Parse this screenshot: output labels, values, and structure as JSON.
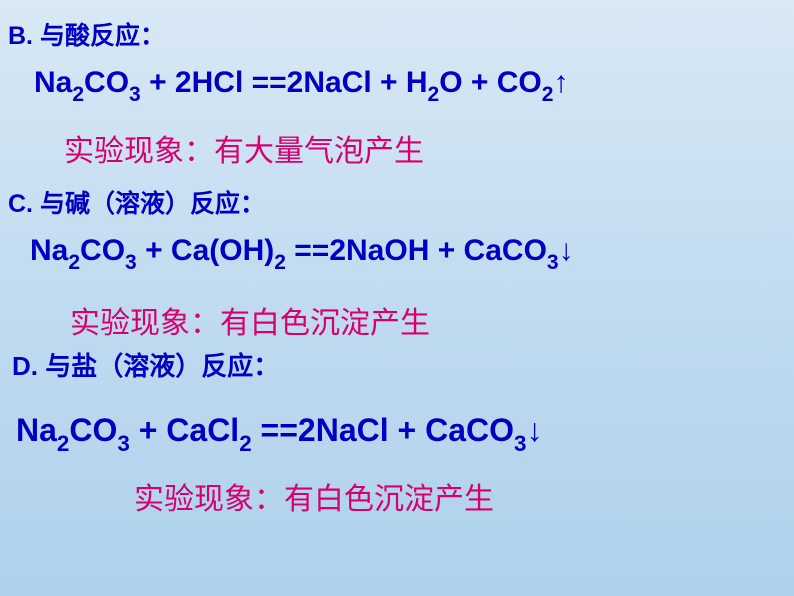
{
  "sections": {
    "B": {
      "label": "B.",
      "heading": "与酸反应：",
      "equation_html": "Na<span class='sub'>2</span>CO<span class='sub'>3</span> + 2HCl ==2NaCl + H<span class='sub'>2</span>O + CO<span class='sub'>2</span>↑",
      "observation": "实验现象：有大量气泡产生"
    },
    "C": {
      "label": "C.",
      "heading": "与碱（溶液）反应：",
      "equation_html": "Na<span class='sub'>2</span>CO<span class='sub'>3</span> + Ca(OH)<span class='sub'>2</span> ==2NaOH + CaCO<span class='sub'>3</span>↓",
      "observation": "实验现象：有白色沉淀产生"
    },
    "D": {
      "label": "D.",
      "heading": "与盐（溶液）反应：",
      "equation_html": "Na<span class='sub'>2</span>CO<span class='sub'>3</span> + CaCl<span class='sub'>2</span> ==2NaCl + CaCO<span class='sub'>3</span>↓",
      "observation": "实验现象：有白色沉淀产生"
    }
  },
  "colors": {
    "heading": "#0000c3",
    "equation": "#0000c3",
    "observation": "#d6006f",
    "bg_top": "#d9e8f5",
    "bg_bottom": "#aed1ec"
  },
  "fonts": {
    "heading_size": 25,
    "equation_size": 30,
    "observation_size": 30
  }
}
